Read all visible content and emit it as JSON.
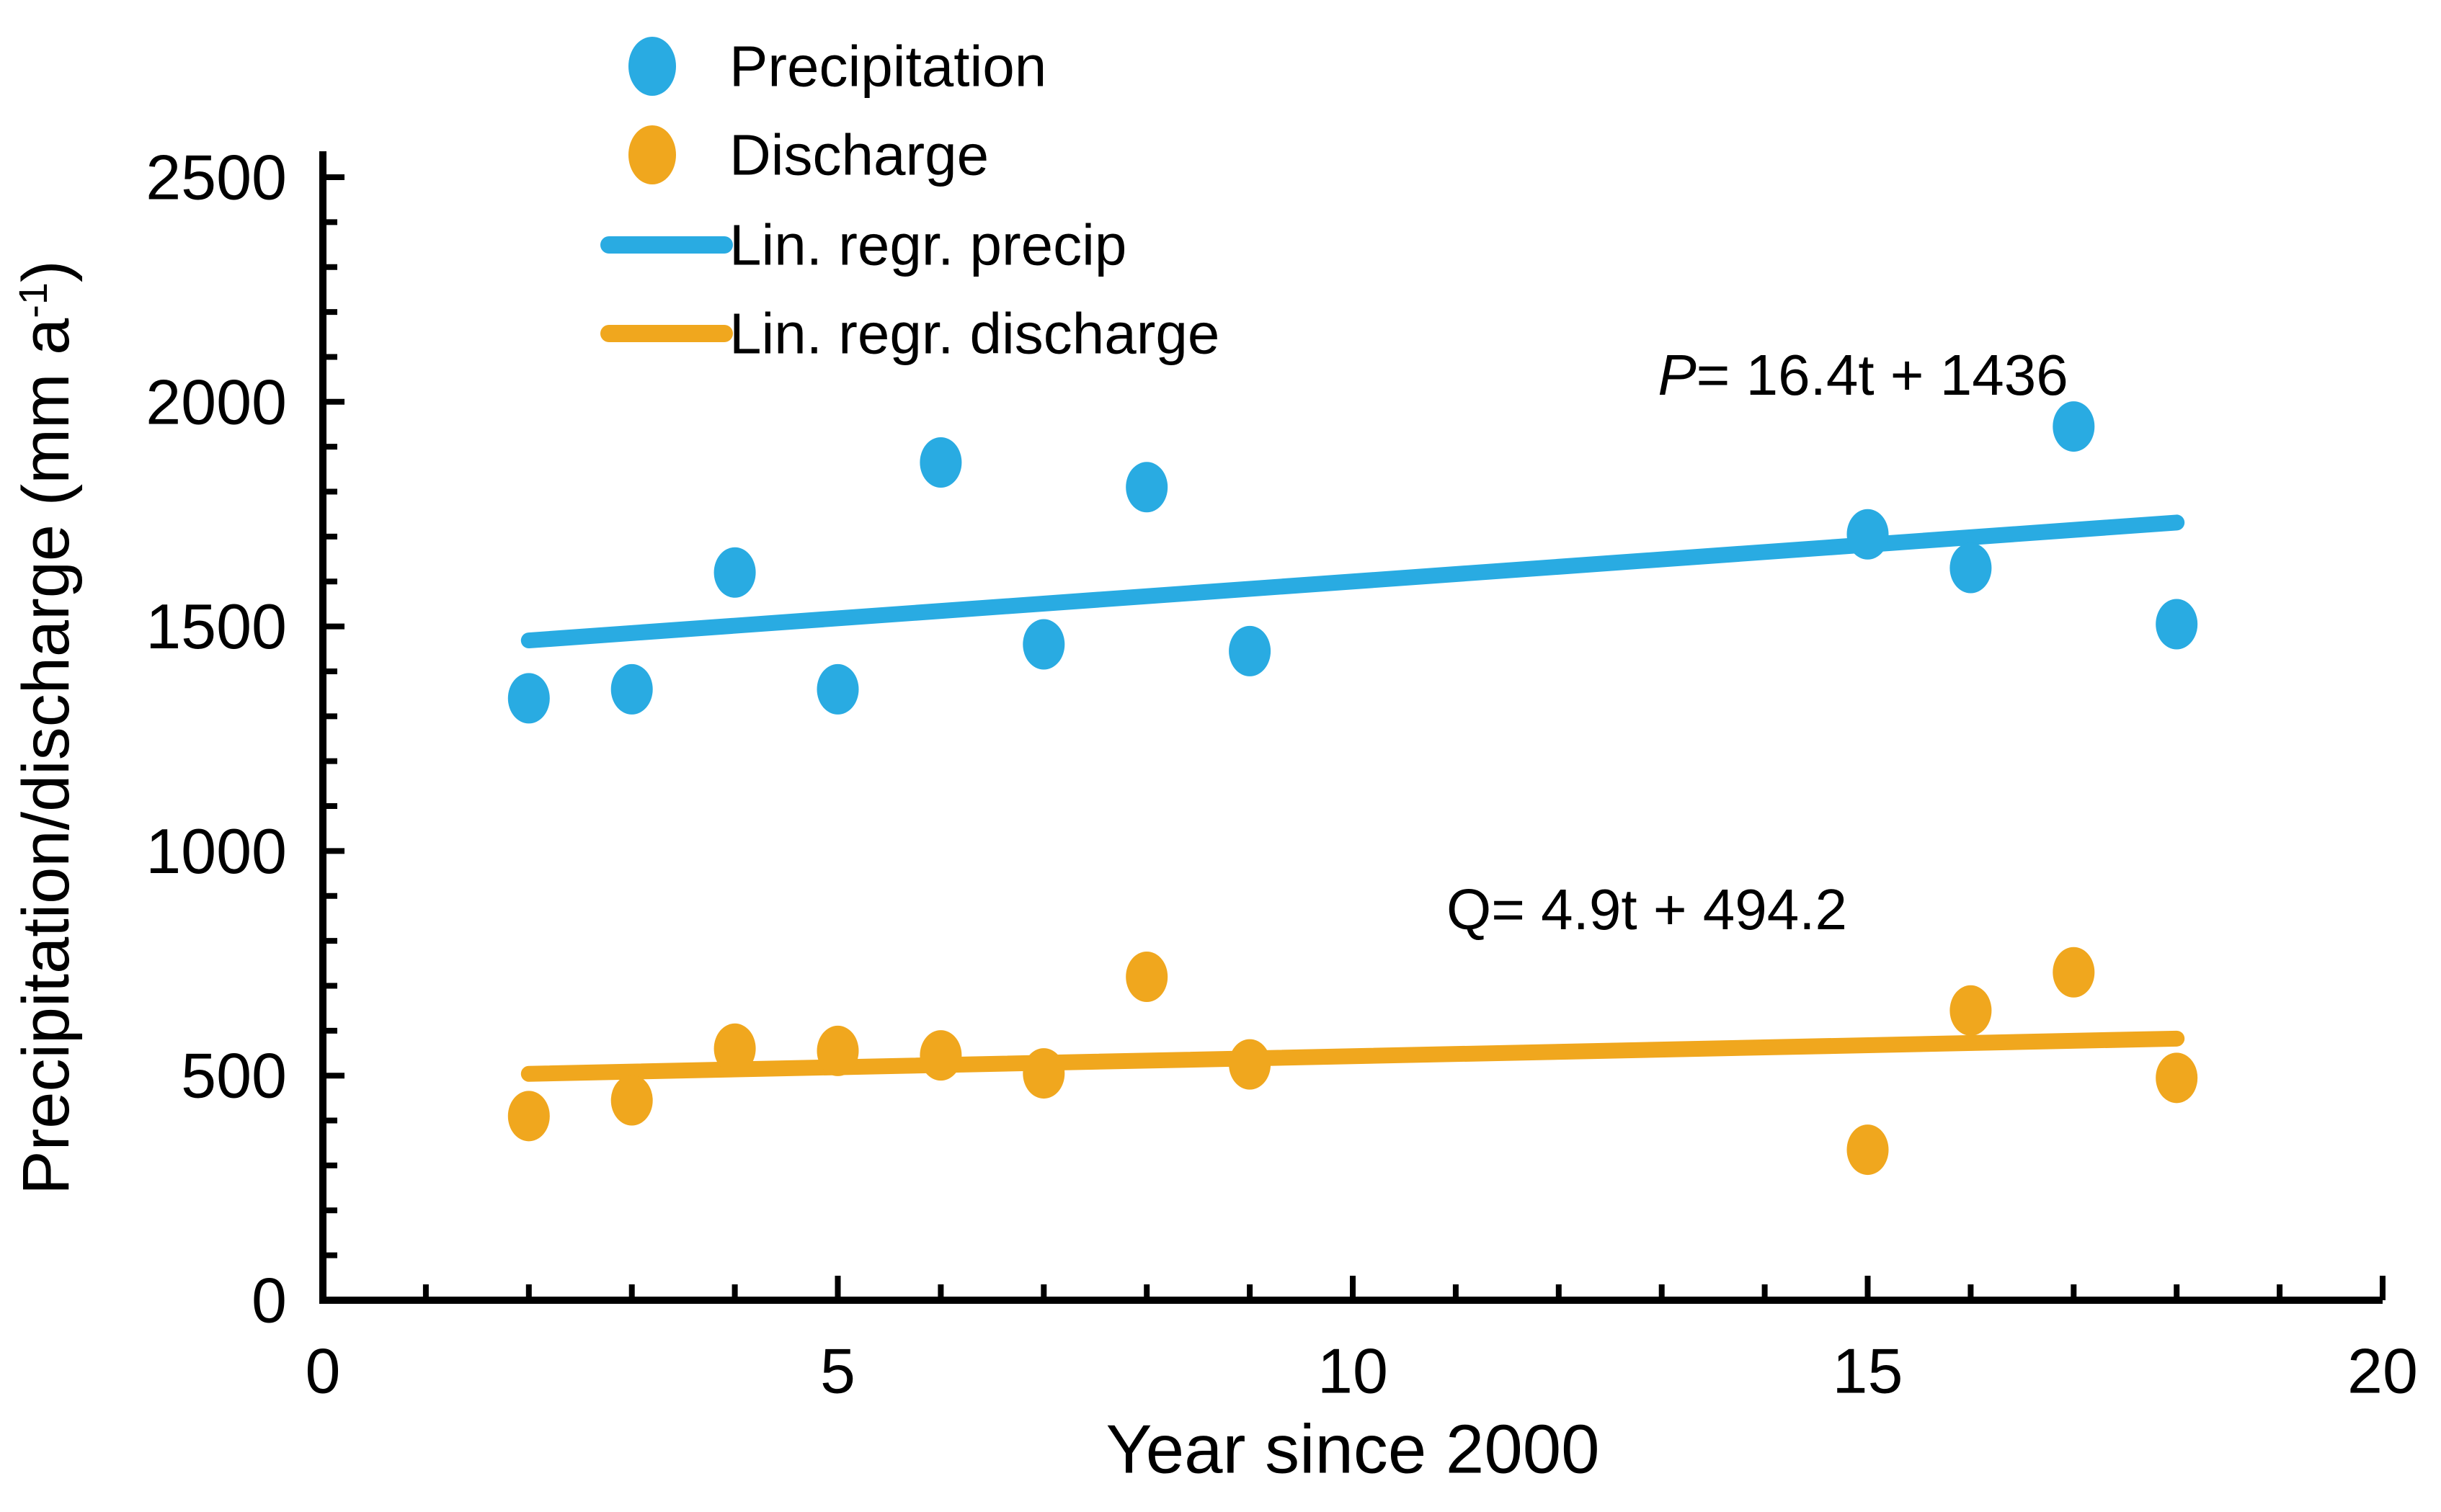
{
  "chart_data": {
    "type": "scatter",
    "title": "",
    "xlabel": "Year since 2000",
    "ylabel": "Precipitation/discharge (mm a⁻¹)",
    "ylabel_parts": {
      "pre": "Precipitation/discharge (mm a",
      "sup": "-1",
      "post": ")"
    },
    "x_axis": {
      "min": 0,
      "max": 20,
      "major_ticks": [
        0,
        5,
        10,
        15,
        20
      ],
      "minor_step": 1
    },
    "y_axis": {
      "min": 0,
      "max": 2500,
      "major_ticks": [
        0,
        500,
        1000,
        1500,
        2000,
        2500
      ],
      "minor_step": 100
    },
    "grid": false,
    "legend_position": "top-left",
    "colors": {
      "precipitation": "#29ABE2",
      "discharge": "#F0A71E",
      "text": "#000000"
    },
    "series": [
      {
        "name": "Precipitation",
        "color": "#29ABE2",
        "x": [
          2,
          3,
          4,
          5,
          6,
          7,
          8,
          9,
          15,
          16,
          17,
          18
        ],
        "y": [
          1340,
          1360,
          1620,
          1360,
          1865,
          1460,
          1810,
          1445,
          1705,
          1630,
          1945,
          1505
        ]
      },
      {
        "name": "Discharge",
        "color": "#F0A71E",
        "x": [
          2,
          3,
          4,
          5,
          6,
          7,
          8,
          9,
          15,
          16,
          17,
          18
        ],
        "y": [
          410,
          445,
          560,
          555,
          545,
          505,
          720,
          525,
          335,
          645,
          730,
          495
        ]
      }
    ],
    "regressions": [
      {
        "name": "Lin. regr. precip",
        "color": "#29ABE2",
        "slope": 16.4,
        "intercept": 1436,
        "t_start": 2,
        "t_end": 18,
        "equation": "P= 16.4t + 1436"
      },
      {
        "name": "Lin. regr. discharge",
        "color": "#F0A71E",
        "slope": 4.9,
        "intercept": 494.2,
        "t_start": 2,
        "t_end": 18,
        "equation": "Q= 4.9t + 494.2"
      }
    ],
    "annotations": [
      {
        "text": "P= 16.4t + 1436",
        "var": "P",
        "rest": "= 16.4t + 1436",
        "italic_var": true
      },
      {
        "text": "Q= 4.9t + 494.2",
        "var": "Q",
        "rest": "= 4.9t + 494.2",
        "italic_var": false
      }
    ],
    "legend": {
      "items": [
        {
          "label": "Precipitation",
          "marker": "dot",
          "color": "#29ABE2"
        },
        {
          "label": "Discharge",
          "marker": "dot",
          "color": "#F0A71E"
        },
        {
          "label": "Lin. regr. precip",
          "marker": "line",
          "color": "#29ABE2"
        },
        {
          "label": "Lin. regr. discharge",
          "marker": "line",
          "color": "#F0A71E"
        }
      ]
    }
  }
}
